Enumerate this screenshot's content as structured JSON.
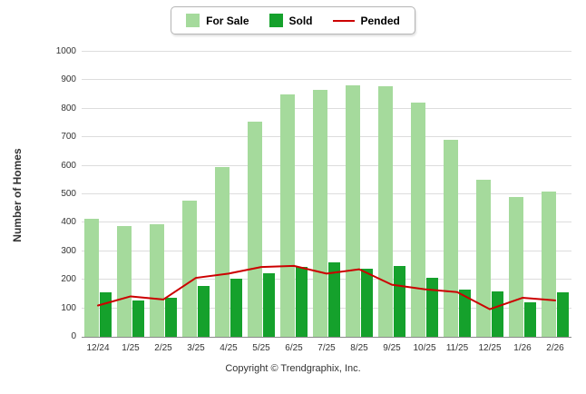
{
  "legend": {
    "for_sale": "For Sale",
    "sold": "Sold",
    "pended": "Pended"
  },
  "footer": {
    "copyright": "Copyright © Trendgraphix, Inc."
  },
  "chart_data": {
    "type": "bar",
    "title": "",
    "ylabel": "Number of Homes",
    "xlabel": "",
    "ylim": [
      0,
      1000
    ],
    "ytick_step": 100,
    "grid": true,
    "legend_position": "top",
    "categories": [
      "12/24",
      "1/25",
      "2/25",
      "3/25",
      "4/25",
      "5/25",
      "6/25",
      "7/25",
      "8/25",
      "9/25",
      "10/25",
      "11/25",
      "12/25",
      "1/26",
      "2/26"
    ],
    "series": [
      {
        "name": "For Sale",
        "type": "bar",
        "color": "#A5DA9C",
        "values": [
          415,
          390,
          395,
          478,
          597,
          756,
          850,
          865,
          883,
          879,
          822,
          690,
          550,
          492,
          511
        ]
      },
      {
        "name": "Sold",
        "type": "bar",
        "color": "#15A12C",
        "values": [
          157,
          126,
          136,
          178,
          203,
          222,
          246,
          262,
          240,
          247,
          207,
          165,
          158,
          121,
          155
        ]
      },
      {
        "name": "Pended",
        "type": "line",
        "color": "#CC0000",
        "values": [
          113,
          145,
          134,
          210,
          225,
          248,
          252,
          225,
          240,
          186,
          170,
          160,
          100,
          140,
          131
        ]
      }
    ]
  }
}
